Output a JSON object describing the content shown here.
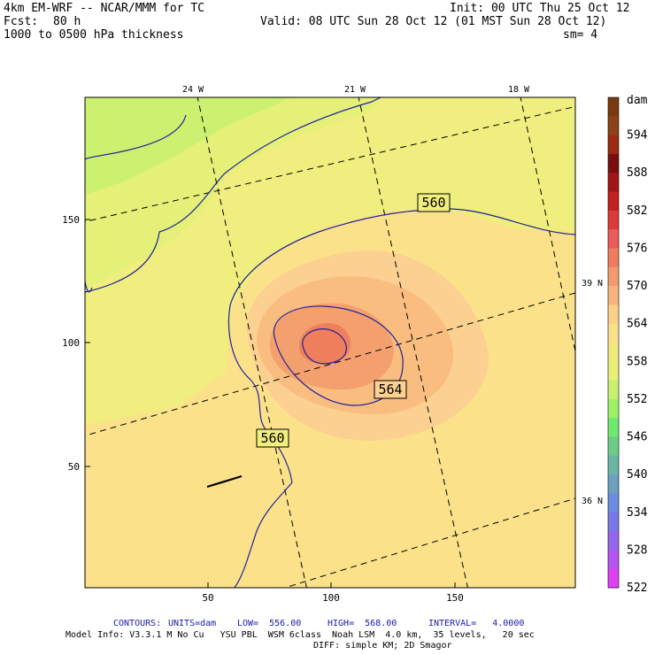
{
  "header": {
    "model": "4km EM-WRF -- NCAR/MMM for TC",
    "init": "Init: 00 UTC Thu 25 Oct 12",
    "fcst_label": "Fcst:",
    "fcst_value": "80 h",
    "valid": "Valid: 08 UTC Sun 28 Oct 12 (01 MST Sun 28 Oct 12)",
    "field": "1000 to 0500 hPa thickness",
    "smoothing": "sm= 4"
  },
  "map": {
    "top_lon_labels": [
      "24 W",
      "21 W",
      "18 W"
    ],
    "right_lat_labels": [
      "39 N",
      "36 N"
    ],
    "y_ticks": [
      "150",
      "100",
      "50"
    ],
    "x_ticks": [
      "50",
      "100",
      "150"
    ],
    "contour_labels": [
      "560",
      "564",
      "560"
    ]
  },
  "colorbar": {
    "unit": "dam",
    "labels": [
      "594",
      "588",
      "582",
      "576",
      "570",
      "564",
      "558",
      "552",
      "546",
      "540",
      "534",
      "528",
      "522"
    ],
    "colors": [
      "#7a3a10",
      "#8a4216",
      "#9a2b12",
      "#7a0e0e",
      "#a01616",
      "#c42020",
      "#dd3a3a",
      "#ec5a5a",
      "#f07c5e",
      "#f59a6c",
      "#f8b47c",
      "#fbd08a",
      "#fbe08c",
      "#f2ea7c",
      "#e8f078",
      "#c8f070",
      "#9ef068",
      "#70e870",
      "#6ccc88",
      "#6cb4a4",
      "#6ca0c0",
      "#6c8ce0",
      "#7a78e8",
      "#9466ec",
      "#b654f0",
      "#e040f4"
    ]
  },
  "footer": {
    "contours_label": "CONTOURS:",
    "units": "UNITS=dam",
    "low": "LOW=  556.00",
    "high": "HIGH=  568.00",
    "interval": "INTERVAL=   4.0000",
    "model_info": "Model Info: V3.3.1 M No Cu   YSU PBL  WSM 6class  Noah LSM  4.0 km,  35 levels,   20 sec",
    "diff": "DIFF: simple KM; 2D Smagor"
  }
}
